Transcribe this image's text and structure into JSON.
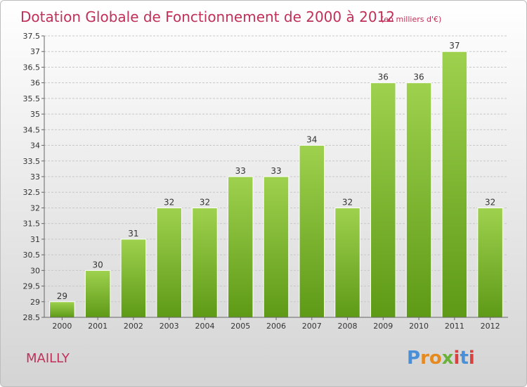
{
  "chart_data": {
    "type": "bar",
    "title": "Dotation Globale de Fonctionnement de 2000 à 2012",
    "subtitle": "(en milliers d'€)",
    "categories": [
      "2000",
      "2001",
      "2002",
      "2003",
      "2004",
      "2005",
      "2006",
      "2007",
      "2008",
      "2009",
      "2010",
      "2011",
      "2012"
    ],
    "values": [
      29,
      30,
      31,
      32,
      32,
      33,
      33,
      34,
      32,
      36,
      36,
      37,
      32
    ],
    "data_labels": [
      "29",
      "30",
      "31",
      "32",
      "32",
      "33",
      "33",
      "34",
      "32",
      "36",
      "36",
      "37",
      "32"
    ],
    "ylim": [
      28.5,
      37.5
    ],
    "yticks": [
      28.5,
      29,
      29.5,
      30,
      30.5,
      31,
      31.5,
      32,
      32.5,
      33,
      33.5,
      34,
      34.5,
      35,
      35.5,
      36,
      36.5,
      37,
      37.5
    ],
    "ytick_labels": [
      "28.5",
      "29",
      "29.5",
      "30",
      "30.5",
      "31",
      "31.5",
      "32",
      "32.5",
      "33",
      "33.5",
      "34",
      "34.5",
      "35",
      "35.5",
      "36",
      "36.5",
      "37",
      "37.5"
    ],
    "xlabel": "",
    "ylabel": "",
    "grid": true,
    "bar_color_top": "#9ed14e",
    "bar_color_bottom": "#5e9a16"
  },
  "commune": "MAILLY",
  "logo": {
    "letters": [
      "P",
      "r",
      "o",
      "x",
      "i",
      "t",
      "i"
    ],
    "colors": [
      "#4a90d9",
      "#e58a1f",
      "#e58a1f",
      "#6bb23a",
      "#d94040",
      "#4a90d9",
      "#d94040"
    ],
    "icon": "proxiti-logo"
  },
  "colors": {
    "title": "#c03058",
    "grid": "#c8c8c8",
    "axis_text": "#333333"
  }
}
